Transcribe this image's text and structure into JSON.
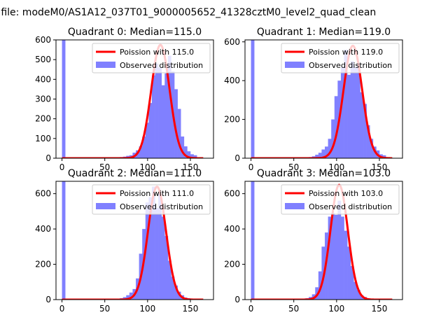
{
  "suptitle": "n file: modeM0/AS1A12_037T01_9000005652_41328cztM0_level2_quad_clean",
  "chart_data": [
    {
      "type": "bar",
      "title": "Quadrant 0: Median=115.0",
      "xlim": [
        -7,
        177
      ],
      "ylim": [
        0,
        600
      ],
      "xticks": [
        0,
        50,
        100,
        150
      ],
      "yticks": [
        0,
        100,
        200,
        300,
        400,
        500,
        600
      ],
      "legend": [
        "Poission with 115.0",
        "Observed distribution"
      ],
      "legend_position": "upper right",
      "poisson_mean": 115.0,
      "poisson_peak": 575,
      "hist": {
        "bin_width": 3.75,
        "edges_start": 0,
        "counts": [
          600,
          3,
          2,
          2,
          2,
          2,
          2,
          2,
          2,
          2,
          2,
          2,
          2,
          2,
          2,
          2,
          3,
          4,
          6,
          8,
          12,
          15,
          28,
          40,
          60,
          110,
          180,
          280,
          420,
          480,
          460,
          370,
          430,
          520,
          440,
          350,
          250,
          110,
          60,
          35,
          20,
          15
        ]
      }
    },
    {
      "type": "bar",
      "title": "Quadrant 1: Median=119.0",
      "xlim": [
        -7,
        177
      ],
      "ylim": [
        0,
        610
      ],
      "xticks": [
        0,
        50,
        100,
        150
      ],
      "yticks": [
        0,
        200,
        400,
        600
      ],
      "legend": [
        "Poission with 119.0",
        "Observed distribution"
      ],
      "legend_position": "upper right",
      "poisson_mean": 119.0,
      "poisson_peak": 580,
      "hist": {
        "bin_width": 3.75,
        "edges_start": 0,
        "counts": [
          610,
          3,
          2,
          2,
          2,
          2,
          2,
          2,
          2,
          2,
          2,
          2,
          2,
          2,
          2,
          2,
          3,
          4,
          6,
          10,
          18,
          28,
          45,
          60,
          100,
          200,
          320,
          400,
          470,
          560,
          430,
          500,
          470,
          490,
          340,
          280,
          170,
          100,
          60,
          40,
          20,
          15
        ]
      }
    },
    {
      "type": "bar",
      "title": "Quadrant 2: Median=111.0",
      "xlim": [
        -7,
        177
      ],
      "ylim": [
        0,
        670
      ],
      "xticks": [
        0,
        50,
        100,
        150
      ],
      "yticks": [
        0,
        200,
        400,
        600
      ],
      "legend": [
        "Poission with 111.0",
        "Observed distribution"
      ],
      "legend_position": "upper right",
      "poisson_mean": 111.0,
      "poisson_peak": 640,
      "hist": {
        "bin_width": 3.75,
        "edges_start": 0,
        "counts": [
          670,
          3,
          2,
          2,
          2,
          2,
          2,
          2,
          2,
          2,
          2,
          2,
          2,
          2,
          2,
          2,
          3,
          4,
          8,
          14,
          25,
          40,
          60,
          120,
          260,
          400,
          550,
          580,
          640,
          520,
          600,
          470,
          360,
          220,
          130,
          80,
          45,
          25,
          12,
          8,
          5,
          3
        ]
      }
    },
    {
      "type": "bar",
      "title": "Quadrant 3: Median=103.0",
      "xlim": [
        -7,
        177
      ],
      "ylim": [
        0,
        670
      ],
      "xticks": [
        0,
        50,
        100,
        150
      ],
      "yticks": [
        0,
        200,
        400,
        600
      ],
      "legend": [
        "Poission with 103.0",
        "Observed distribution"
      ],
      "legend_position": "upper right",
      "poisson_mean": 103.0,
      "poisson_peak": 650,
      "hist": {
        "bin_width": 3.75,
        "edges_start": 0,
        "counts": [
          670,
          3,
          2,
          2,
          2,
          2,
          2,
          2,
          2,
          2,
          2,
          2,
          2,
          2,
          2,
          2,
          4,
          8,
          15,
          30,
          70,
          160,
          300,
          380,
          470,
          490,
          480,
          560,
          470,
          390,
          300,
          190,
          100,
          55,
          25,
          15,
          8,
          5,
          3,
          2,
          2,
          2
        ]
      }
    }
  ],
  "colors": {
    "fit_line": "#ff0000",
    "hist_fill": "#8080ff",
    "axis": "#000000"
  }
}
